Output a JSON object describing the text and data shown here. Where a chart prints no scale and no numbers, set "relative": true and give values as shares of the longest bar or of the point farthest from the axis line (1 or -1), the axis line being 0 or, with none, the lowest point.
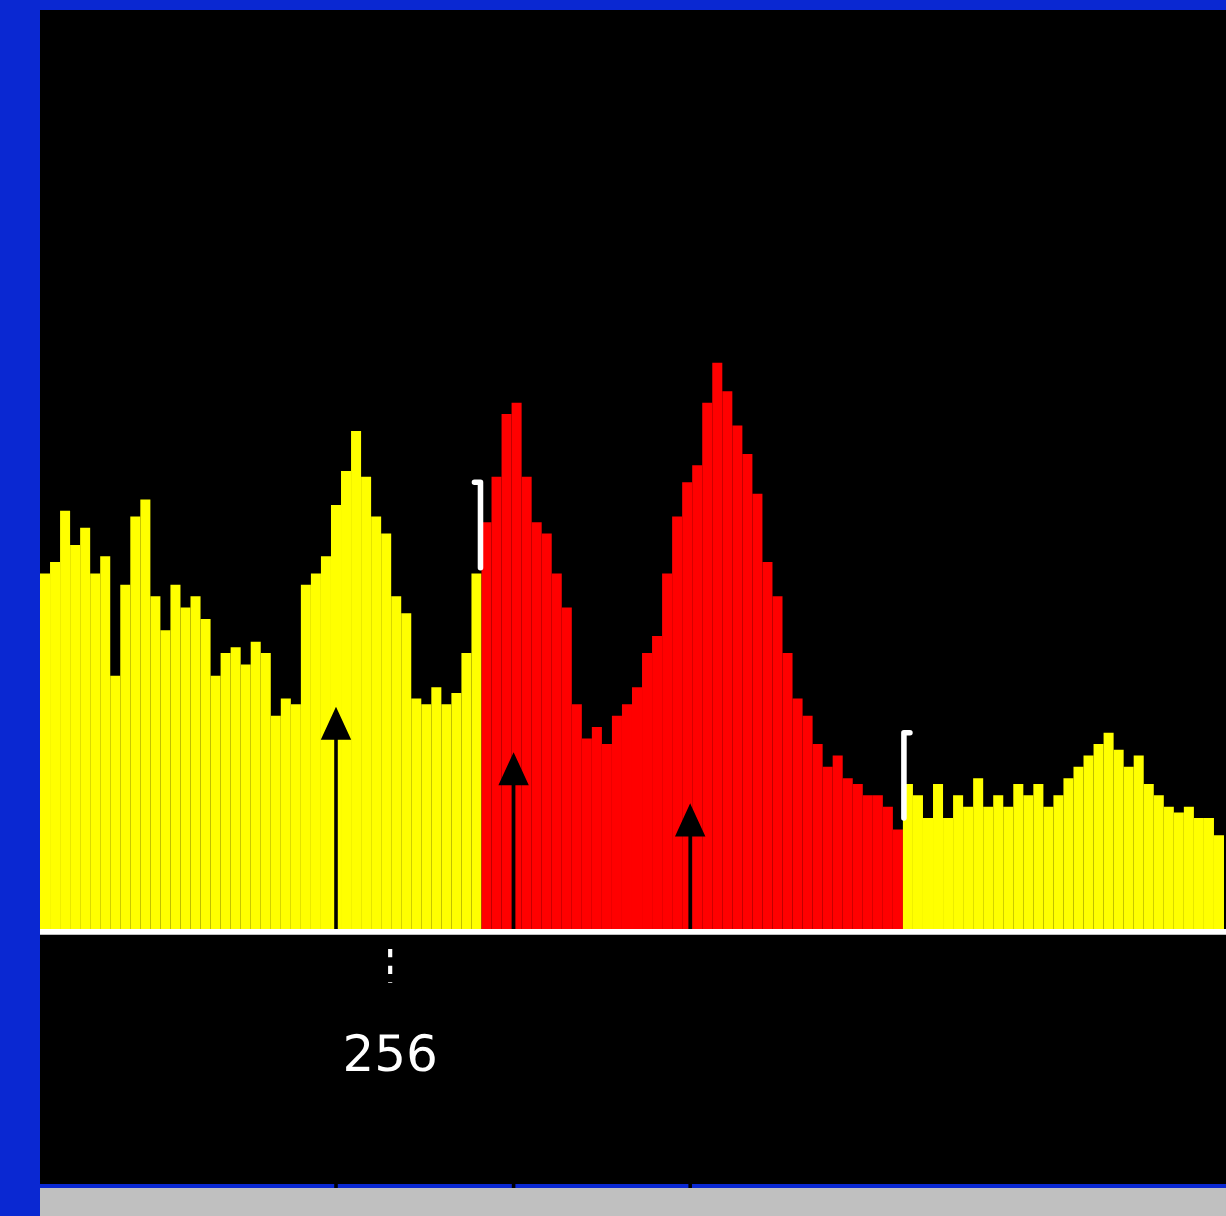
{
  "chart_data": {
    "type": "bar",
    "relative": true,
    "categories": [
      null,
      null,
      null,
      null,
      null,
      null,
      null,
      null,
      null,
      null,
      null,
      null,
      null,
      null,
      null,
      null,
      null,
      null,
      null,
      null,
      null,
      null,
      null,
      null,
      null,
      null,
      null,
      null,
      null,
      null,
      null,
      null,
      null,
      null,
      null,
      null,
      null,
      null,
      null,
      null,
      null,
      null,
      null,
      null,
      null,
      null,
      null,
      null,
      null,
      null,
      null,
      null,
      null,
      null,
      null,
      null,
      null,
      null,
      null,
      null,
      null,
      null,
      null,
      null,
      null,
      null,
      null,
      null,
      null,
      null,
      null,
      null,
      null,
      null,
      null,
      null,
      null,
      null,
      null,
      null,
      null,
      null,
      null,
      null,
      null,
      null,
      null,
      null,
      null,
      null,
      null,
      null,
      null,
      null,
      null,
      null,
      null,
      null,
      null,
      null,
      null,
      null,
      null,
      null,
      null,
      null,
      null,
      null,
      null,
      null,
      null,
      null,
      null,
      null,
      null,
      null,
      null,
      null
    ],
    "values": [
      0.63,
      0.65,
      0.74,
      0.68,
      0.71,
      0.63,
      0.66,
      0.45,
      0.61,
      0.73,
      0.76,
      0.59,
      0.53,
      0.61,
      0.57,
      0.59,
      0.55,
      0.45,
      0.49,
      0.5,
      0.47,
      0.51,
      0.49,
      0.38,
      0.41,
      0.4,
      0.61,
      0.63,
      0.66,
      0.75,
      0.81,
      0.88,
      0.8,
      0.73,
      0.7,
      0.59,
      0.56,
      0.41,
      0.4,
      0.43,
      0.4,
      0.42,
      0.49,
      0.63,
      0.72,
      0.8,
      0.91,
      0.93,
      0.8,
      0.72,
      0.7,
      0.63,
      0.57,
      0.4,
      0.34,
      0.36,
      0.33,
      0.38,
      0.4,
      0.43,
      0.49,
      0.52,
      0.63,
      0.73,
      0.79,
      0.82,
      0.93,
      1.0,
      0.95,
      0.89,
      0.84,
      0.77,
      0.65,
      0.59,
      0.49,
      0.41,
      0.38,
      0.33,
      0.29,
      0.31,
      0.27,
      0.26,
      0.24,
      0.24,
      0.22,
      0.18,
      0.26,
      0.24,
      0.2,
      0.26,
      0.2,
      0.24,
      0.22,
      0.27,
      0.22,
      0.24,
      0.22,
      0.26,
      0.24,
      0.26,
      0.22,
      0.24,
      0.27,
      0.29,
      0.31,
      0.33,
      0.35,
      0.32,
      0.29,
      0.31,
      0.26,
      0.24,
      0.22,
      0.21,
      0.22,
      0.2,
      0.2,
      0.17
    ],
    "colors": [
      "#ffff00",
      "#ffff00",
      "#ffff00",
      "#ffff00",
      "#ffff00",
      "#ffff00",
      "#ffff00",
      "#ffff00",
      "#ffff00",
      "#ffff00",
      "#ffff00",
      "#ffff00",
      "#ffff00",
      "#ffff00",
      "#ffff00",
      "#ffff00",
      "#ffff00",
      "#ffff00",
      "#ffff00",
      "#ffff00",
      "#ffff00",
      "#ffff00",
      "#ffff00",
      "#ffff00",
      "#ffff00",
      "#ffff00",
      "#ffff00",
      "#ffff00",
      "#ffff00",
      "#ffff00",
      "#ffff00",
      "#ffff00",
      "#ffff00",
      "#ffff00",
      "#ffff00",
      "#ffff00",
      "#ffff00",
      "#ffff00",
      "#ffff00",
      "#ffff00",
      "#ffff00",
      "#ffff00",
      "#ffff00",
      "#ffff00",
      "#ff0000",
      "#ff0000",
      "#ff0000",
      "#ff0000",
      "#ff0000",
      "#ff0000",
      "#ff0000",
      "#ff0000",
      "#ff0000",
      "#ff0000",
      "#ff0000",
      "#ff0000",
      "#ff0000",
      "#ff0000",
      "#ff0000",
      "#ff0000",
      "#ff0000",
      "#ff0000",
      "#ff0000",
      "#ff0000",
      "#ff0000",
      "#ff0000",
      "#ff0000",
      "#ff0000",
      "#ff0000",
      "#ff0000",
      "#ff0000",
      "#ff0000",
      "#ff0000",
      "#ff0000",
      "#ff0000",
      "#ff0000",
      "#ff0000",
      "#ff0000",
      "#ff0000",
      "#ff0000",
      "#ff0000",
      "#ff0000",
      "#ff0000",
      "#ff0000",
      "#ff0000",
      "#ff0000",
      "#ffff00",
      "#ffff00",
      "#ffff00",
      "#ffff00",
      "#ffff00",
      "#ffff00",
      "#ffff00",
      "#ffff00",
      "#ffff00",
      "#ffff00",
      "#ffff00",
      "#ffff00",
      "#ffff00",
      "#ffff00",
      "#ffff00",
      "#ffff00",
      "#ffff00",
      "#ffff00",
      "#ffff00",
      "#ffff00",
      "#ffff00",
      "#ffff00",
      "#ffff00",
      "#ffff00",
      "#ffff00",
      "#ffff00",
      "#ffff00",
      "#ffff00",
      "#ffff00",
      "#ffff00",
      "#ffff00",
      "#ffff00"
    ],
    "annotations": [
      "256"
    ]
  }
}
